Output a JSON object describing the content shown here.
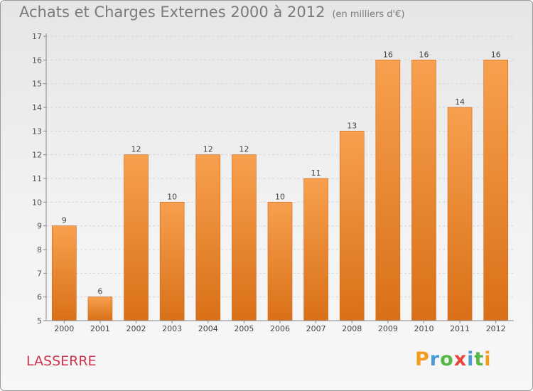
{
  "chart_data": {
    "type": "bar",
    "title": "Achats et Charges Externes 2000 à 2012",
    "subtitle": "(en milliers d'€)",
    "categories": [
      "2000",
      "2001",
      "2002",
      "2003",
      "2004",
      "2005",
      "2006",
      "2007",
      "2008",
      "2009",
      "2010",
      "2011",
      "2012"
    ],
    "values": [
      9,
      6,
      12,
      10,
      12,
      12,
      10,
      11,
      13,
      16,
      16,
      14,
      16
    ],
    "ylim": [
      5,
      17
    ],
    "yticks": [
      5,
      6,
      7,
      8,
      9,
      10,
      11,
      12,
      13,
      14,
      15,
      16,
      17
    ],
    "grid": true,
    "bar_color_top": "#f8a04e",
    "bar_color_bottom": "#d97018"
  },
  "footer": {
    "city": "LASSERRE",
    "logo": [
      {
        "char": "P",
        "color": "#f39c1f"
      },
      {
        "char": "r",
        "color": "#4a9ad4"
      },
      {
        "char": "o",
        "color": "#56b946"
      },
      {
        "char": "x",
        "color": "#e8463c"
      },
      {
        "char": "i",
        "color": "#4a9ad4"
      },
      {
        "char": "t",
        "color": "#56b946"
      },
      {
        "char": "i",
        "color": "#f39c1f"
      }
    ]
  }
}
